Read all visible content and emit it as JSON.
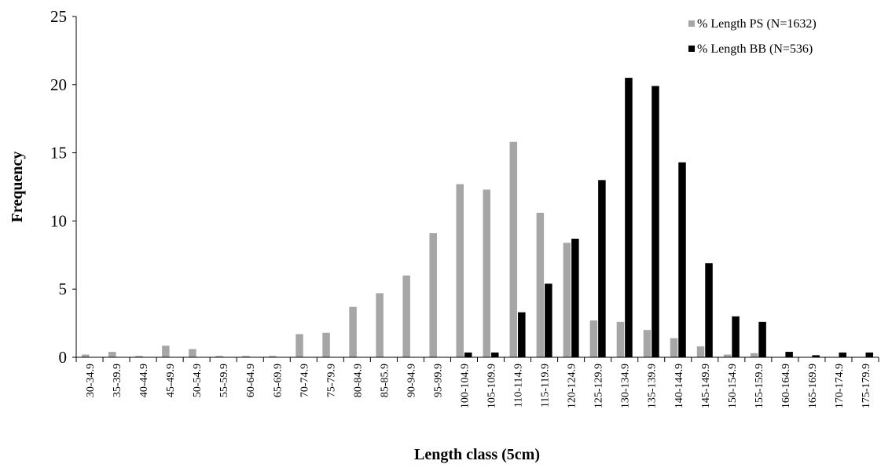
{
  "chart_data": {
    "type": "bar",
    "xlabel": "Length class (5cm)",
    "ylabel": "Frequency",
    "ylim": [
      0,
      25
    ],
    "yticks": [
      "0",
      "5",
      "10",
      "15",
      "20",
      "25"
    ],
    "grid": false,
    "legend_position": "top-right",
    "categories": [
      "30-34.9",
      "35-39.9",
      "40-44.9",
      "45-49.9",
      "50-54.9",
      "55-59.9",
      "60-64.9",
      "65-69.9",
      "70-74.9",
      "75-79.9",
      "80-84.9",
      "85-85.9",
      "90-94.9",
      "95-99.9",
      "100-104.9",
      "105-109.9",
      "110-114.9",
      "115-119.9",
      "120-124.9",
      "125-129.9",
      "130-134.9",
      "135-139.9",
      "140-144.9",
      "145-149.9",
      "150-154.9",
      "155-159.9",
      "160-164.9",
      "165-169.9",
      "170-174.9",
      "175-179.9"
    ],
    "series": [
      {
        "name": "% Length PS (N=1632)",
        "color": "#a6a6a6",
        "values": [
          0.2,
          0.4,
          0.1,
          0.85,
          0.6,
          0.1,
          0.1,
          0.1,
          1.7,
          1.8,
          3.7,
          4.7,
          6.0,
          9.1,
          12.7,
          12.3,
          15.8,
          10.6,
          8.4,
          2.7,
          2.6,
          2.0,
          1.4,
          0.8,
          0.2,
          0.3,
          0,
          0,
          0,
          0
        ]
      },
      {
        "name": "% Length BB (N=536)",
        "color": "#000000",
        "values": [
          0,
          0,
          0,
          0,
          0,
          0,
          0,
          0,
          0,
          0,
          0,
          0,
          0,
          0,
          0.35,
          0.35,
          3.3,
          5.4,
          8.7,
          13.0,
          20.5,
          19.9,
          14.3,
          6.9,
          3.0,
          2.6,
          0.4,
          0.15,
          0.35,
          0.35
        ]
      }
    ]
  }
}
